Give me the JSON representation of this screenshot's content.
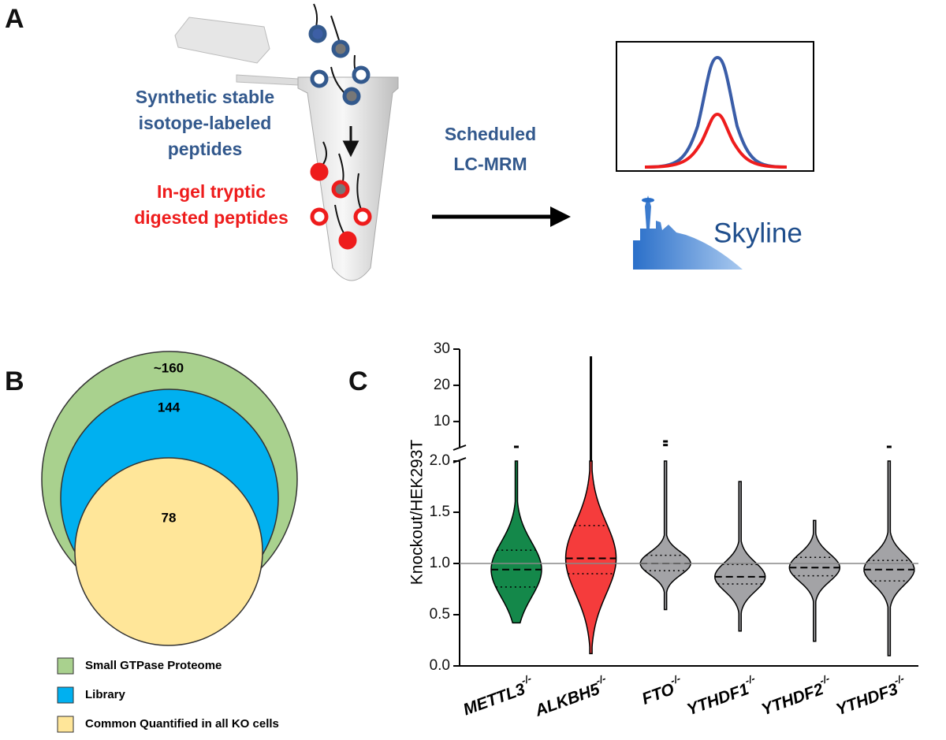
{
  "panel_a": {
    "label": "A",
    "labeled_text": [
      "Synthetic stable",
      "isotope-labeled",
      "peptides"
    ],
    "digested_text": [
      "In-gel tryptic",
      "digested peptides"
    ],
    "method_text": [
      "Scheduled",
      "LC-MRM"
    ],
    "software": "Skyline"
  },
  "panel_b": {
    "label": "B",
    "sets": [
      {
        "name": "Small GTPase Proteome",
        "count": "~160",
        "color": "#a9d18e"
      },
      {
        "name": "Library",
        "count": 144,
        "color": "#00b0f0"
      },
      {
        "name": "Common Quantified in all KO cells",
        "count": 78,
        "color": "#ffe699"
      }
    ]
  },
  "chart_data": {
    "type": "violin",
    "panel_label": "C",
    "ylabel": "Knockout/HEK293T",
    "categories": [
      {
        "name": "METTL3",
        "superscript": "-/-"
      },
      {
        "name": "ALKBH5",
        "superscript": "-/-"
      },
      {
        "name": "FTO",
        "superscript": "-/-"
      },
      {
        "name": "YTHDF1",
        "superscript": "-/-"
      },
      {
        "name": "YTHDF2",
        "superscript": "-/-"
      },
      {
        "name": "YTHDF3",
        "superscript": "-/-"
      }
    ],
    "colors": [
      "#14884a",
      "#f53c3c",
      "#a3a3a6",
      "#a3a3a6",
      "#a3a3a6",
      "#a3a3a6"
    ],
    "min": [
      0.42,
      0.12,
      0.55,
      0.34,
      0.24,
      0.1
    ],
    "q1": [
      0.77,
      0.9,
      0.93,
      0.8,
      0.88,
      0.83
    ],
    "median": [
      0.94,
      1.05,
      1.0,
      0.87,
      0.96,
      0.94
    ],
    "q3": [
      1.13,
      1.37,
      1.08,
      0.99,
      1.06,
      1.03
    ],
    "max": [
      2.0,
      28,
      2.0,
      1.8,
      1.42,
      2.0
    ],
    "outliers": [
      [
        3
      ],
      [],
      [
        3.5,
        4.5
      ],
      [],
      [],
      [
        3
      ]
    ],
    "reference_line": 1,
    "ylim": [
      0,
      2
    ],
    "yticks": [
      {
        "value": 0,
        "label": "0.0"
      },
      {
        "value": 0.5,
        "label": "0.5"
      },
      {
        "value": 1,
        "label": "1.0"
      },
      {
        "value": 1.5,
        "label": "1.5"
      },
      {
        "value": 2,
        "label": "2.0"
      }
    ],
    "y_upper_lim": [
      3,
      30
    ],
    "y_upper_ticks": [
      10,
      20,
      30
    ]
  }
}
